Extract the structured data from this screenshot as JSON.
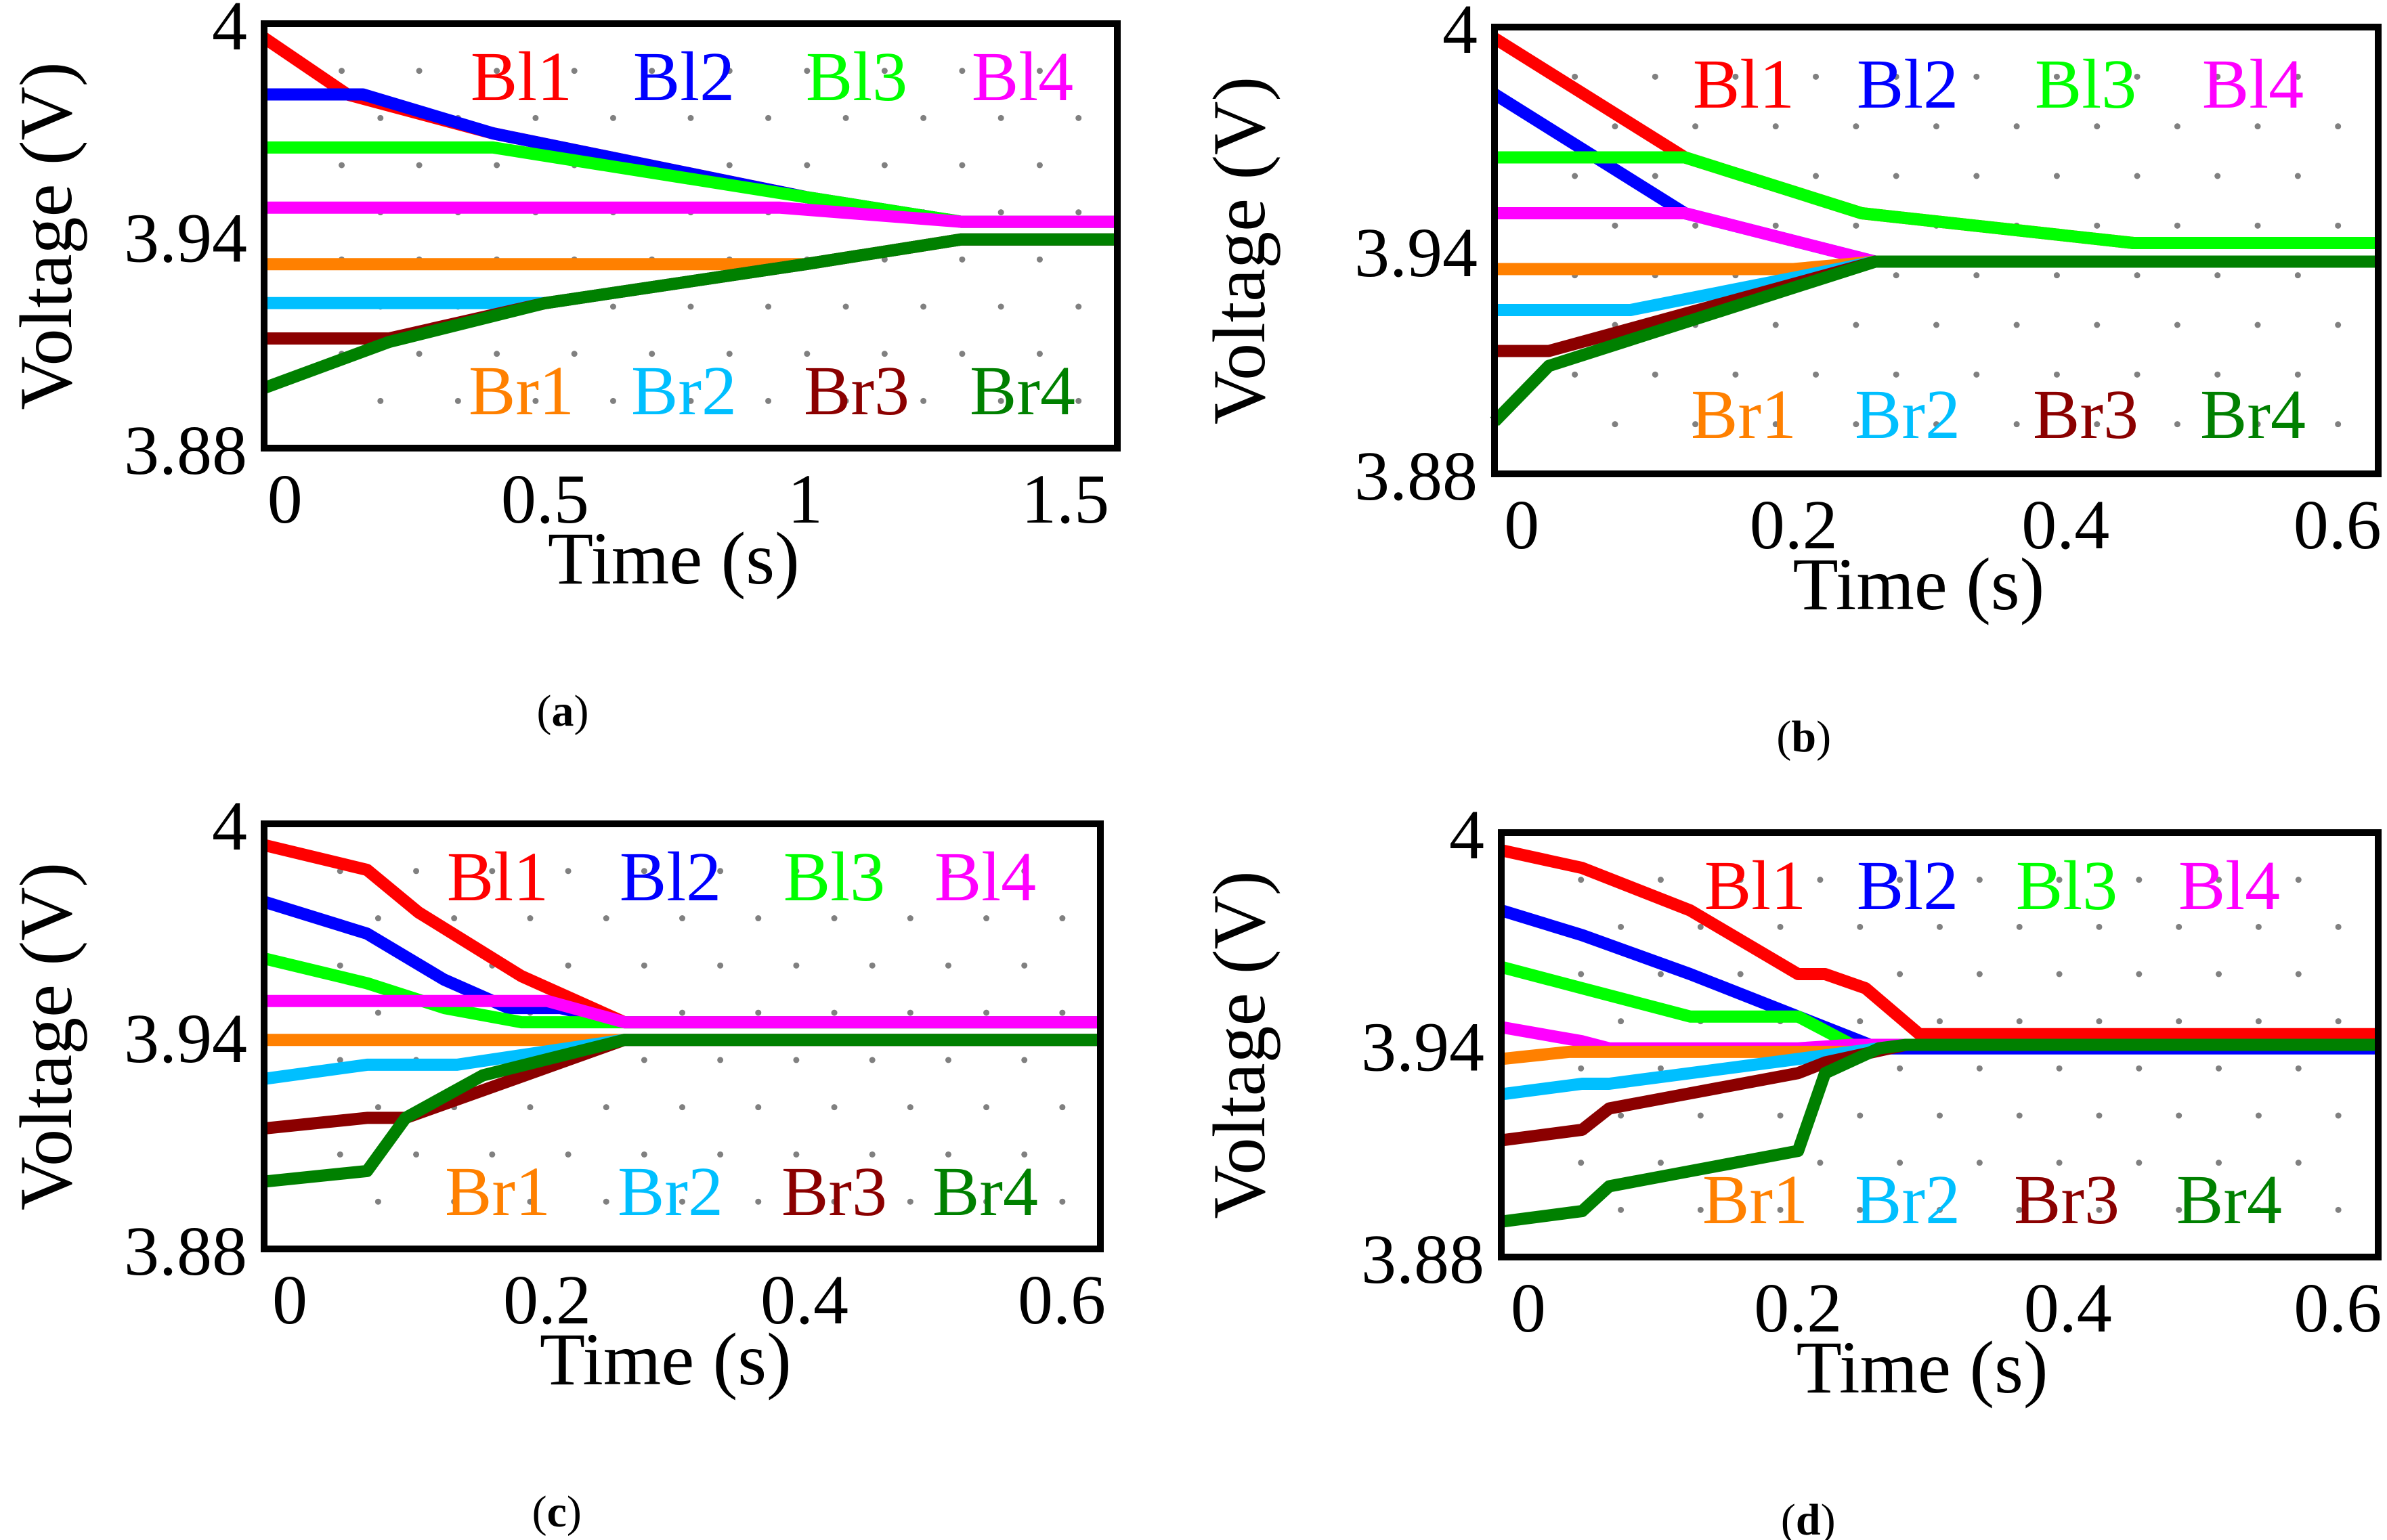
{
  "colors": {
    "Bl1": "#ff0000",
    "Bl2": "#0000ff",
    "Bl3": "#00ff00",
    "Bl4": "#ff00ff",
    "Br1": "#ff8000",
    "Br2": "#00bfff",
    "Br3": "#8b0000",
    "Br4": "#008000",
    "grid_dot": "#808080"
  },
  "chart_data": [
    {
      "panel_label": "(a)",
      "label_letter": "a",
      "type": "line",
      "xlabel": "Time (s)",
      "ylabel": "Voltage (V)",
      "xlim": [
        -0.04,
        1.6
      ],
      "ylim": [
        3.88,
        4.0
      ],
      "xticks": [
        0,
        0.5,
        1,
        1.5
      ],
      "xtick_labels": [
        "0",
        "0.5",
        "1",
        "1.5"
      ],
      "yticks": [
        3.88,
        3.94,
        4.0
      ],
      "ytick_labels": [
        "3.88",
        "3.94",
        "4"
      ],
      "legend_top": [
        "Bl1",
        "Bl2",
        "Bl3",
        "Bl4"
      ],
      "legend_bottom": [
        "Br1",
        "Br2",
        "Br3",
        "Br4"
      ],
      "series": [
        {
          "name": "Bl1",
          "x": [
            -0.04,
            0.12,
            0.4,
            1.0,
            1.3,
            1.6
          ],
          "y": [
            3.996,
            3.98,
            3.969,
            3.951,
            3.944,
            3.944
          ]
        },
        {
          "name": "Bl2",
          "x": [
            -0.04,
            0.15,
            0.4,
            1.0,
            1.3,
            1.6
          ],
          "y": [
            3.98,
            3.98,
            3.969,
            3.951,
            3.944,
            3.944
          ]
        },
        {
          "name": "Bl3",
          "x": [
            -0.04,
            0.4,
            1.0,
            1.3,
            1.6
          ],
          "y": [
            3.965,
            3.965,
            3.951,
            3.944,
            3.944
          ]
        },
        {
          "name": "Bl4",
          "x": [
            -0.04,
            0.95,
            1.3,
            1.6
          ],
          "y": [
            3.948,
            3.948,
            3.944,
            3.944
          ]
        },
        {
          "name": "Br1",
          "x": [
            -0.04,
            1.0,
            1.3,
            1.6
          ],
          "y": [
            3.932,
            3.932,
            3.939,
            3.939
          ]
        },
        {
          "name": "Br2",
          "x": [
            -0.04,
            0.5,
            1.0,
            1.3,
            1.6
          ],
          "y": [
            3.921,
            3.921,
            3.932,
            3.939,
            3.939
          ]
        },
        {
          "name": "Br3",
          "x": [
            -0.04,
            0.2,
            0.5,
            1.0,
            1.3,
            1.6
          ],
          "y": [
            3.911,
            3.911,
            3.921,
            3.932,
            3.939,
            3.939
          ]
        },
        {
          "name": "Br4",
          "x": [
            -0.04,
            0.2,
            0.5,
            1.0,
            1.3,
            1.6
          ],
          "y": [
            3.897,
            3.91,
            3.921,
            3.932,
            3.939,
            3.939
          ]
        }
      ]
    },
    {
      "panel_label": "(b)",
      "label_letter": "b",
      "type": "line",
      "xlabel": "Time (s)",
      "ylabel": "Voltage (V)",
      "xlim": [
        -0.02,
        0.63
      ],
      "ylim": [
        3.88,
        4.0
      ],
      "xticks": [
        0,
        0.2,
        0.4,
        0.6
      ],
      "xtick_labels": [
        "0",
        "0.2",
        "0.4",
        "0.6"
      ],
      "yticks": [
        3.88,
        3.94,
        4.0
      ],
      "ytick_labels": [
        "3.88",
        "3.94",
        "4"
      ],
      "legend_top": [
        "Bl1",
        "Bl2",
        "Bl3",
        "Bl4"
      ],
      "legend_bottom": [
        "Br1",
        "Br2",
        "Br3",
        "Br4"
      ],
      "series": [
        {
          "name": "Bl1",
          "x": [
            -0.02,
            0.12,
            0.25,
            0.45,
            0.63
          ],
          "y": [
            3.997,
            3.965,
            3.95,
            3.942,
            3.942
          ]
        },
        {
          "name": "Bl2",
          "x": [
            -0.02,
            0.12,
            0.26,
            0.63
          ],
          "y": [
            3.982,
            3.95,
            3.937,
            3.937
          ]
        },
        {
          "name": "Bl3",
          "x": [
            -0.02,
            0.12,
            0.25,
            0.45,
            0.63
          ],
          "y": [
            3.965,
            3.965,
            3.95,
            3.942,
            3.942
          ]
        },
        {
          "name": "Bl4",
          "x": [
            -0.02,
            0.12,
            0.26,
            0.63
          ],
          "y": [
            3.95,
            3.95,
            3.937,
            3.937
          ]
        },
        {
          "name": "Br1",
          "x": [
            -0.02,
            0.2,
            0.26,
            0.63
          ],
          "y": [
            3.935,
            3.935,
            3.937,
            3.937
          ]
        },
        {
          "name": "Br2",
          "x": [
            -0.02,
            0.08,
            0.26,
            0.63
          ],
          "y": [
            3.924,
            3.924,
            3.937,
            3.937
          ]
        },
        {
          "name": "Br3",
          "x": [
            -0.02,
            0.02,
            0.26,
            0.63
          ],
          "y": [
            3.913,
            3.913,
            3.937,
            3.937
          ]
        },
        {
          "name": "Br4",
          "x": [
            -0.02,
            0.02,
            0.26,
            0.63
          ],
          "y": [
            3.894,
            3.909,
            3.937,
            3.937
          ]
        }
      ]
    },
    {
      "panel_label": "(c)",
      "label_letter": "c",
      "type": "line",
      "xlabel": "Time (s)",
      "ylabel": "Voltage (V)",
      "xlim": [
        -0.02,
        0.63
      ],
      "ylim": [
        3.88,
        4.0
      ],
      "xticks": [
        0,
        0.2,
        0.4,
        0.6
      ],
      "xtick_labels": [
        "0",
        "0.2",
        "0.4",
        "0.6"
      ],
      "yticks": [
        3.88,
        3.94,
        4.0
      ],
      "ytick_labels": [
        "3.88",
        "3.94",
        "4"
      ],
      "legend_top": [
        "Bl1",
        "Bl2",
        "Bl3",
        "Bl4"
      ],
      "legend_bottom": [
        "Br1",
        "Br2",
        "Br3",
        "Br4"
      ],
      "series": [
        {
          "name": "Bl1",
          "x": [
            -0.02,
            0.06,
            0.1,
            0.18,
            0.26,
            0.63
          ],
          "y": [
            3.994,
            3.987,
            3.975,
            3.957,
            3.944,
            3.944
          ]
        },
        {
          "name": "Bl2",
          "x": [
            -0.02,
            0.06,
            0.12,
            0.17,
            0.21,
            0.26,
            0.63
          ],
          "y": [
            3.978,
            3.969,
            3.956,
            3.948,
            3.948,
            3.944,
            3.944
          ]
        },
        {
          "name": "Bl3",
          "x": [
            -0.02,
            0.06,
            0.12,
            0.18,
            0.22,
            0.26,
            0.63
          ],
          "y": [
            3.962,
            3.955,
            3.948,
            3.944,
            3.944,
            3.944,
            3.944
          ]
        },
        {
          "name": "Bl4",
          "x": [
            -0.02,
            0.2,
            0.26,
            0.63
          ],
          "y": [
            3.95,
            3.95,
            3.944,
            3.944
          ]
        },
        {
          "name": "Br1",
          "x": [
            -0.02,
            0.26,
            0.63
          ],
          "y": [
            3.939,
            3.939,
            3.939
          ]
        },
        {
          "name": "Br2",
          "x": [
            -0.02,
            0.06,
            0.13,
            0.26,
            0.63
          ],
          "y": [
            3.928,
            3.932,
            3.932,
            3.939,
            3.939
          ]
        },
        {
          "name": "Br3",
          "x": [
            -0.02,
            0.06,
            0.09,
            0.26,
            0.63
          ],
          "y": [
            3.914,
            3.917,
            3.917,
            3.939,
            3.939
          ]
        },
        {
          "name": "Br4",
          "x": [
            -0.02,
            0.06,
            0.09,
            0.15,
            0.26,
            0.63
          ],
          "y": [
            3.899,
            3.902,
            3.917,
            3.929,
            3.939,
            3.939
          ]
        }
      ]
    },
    {
      "panel_label": "(d)",
      "label_letter": "d",
      "type": "line",
      "xlabel": "Time (s)",
      "ylabel": "Voltage (V)",
      "xlim": [
        -0.02,
        0.63
      ],
      "ylim": [
        3.88,
        4.0
      ],
      "xticks": [
        0,
        0.2,
        0.4,
        0.6
      ],
      "xtick_labels": [
        "0",
        "0.2",
        "0.4",
        "0.6"
      ],
      "yticks": [
        3.88,
        3.94,
        4.0
      ],
      "ytick_labels": [
        "3.88",
        "3.94",
        "4"
      ],
      "legend_top": [
        "Bl1",
        "Bl2",
        "Bl3",
        "Bl4"
      ],
      "legend_bottom": [
        "Br1",
        "Br2",
        "Br3",
        "Br4"
      ],
      "series": [
        {
          "name": "Bl1",
          "x": [
            -0.02,
            0.04,
            0.12,
            0.2,
            0.22,
            0.25,
            0.29,
            0.63
          ],
          "y": [
            3.995,
            3.99,
            3.978,
            3.96,
            3.96,
            3.956,
            3.943,
            3.943
          ]
        },
        {
          "name": "Bl2",
          "x": [
            -0.02,
            0.04,
            0.12,
            0.2,
            0.26,
            0.63
          ],
          "y": [
            3.978,
            3.971,
            3.96,
            3.948,
            3.939,
            3.939
          ]
        },
        {
          "name": "Bl3",
          "x": [
            -0.02,
            0.04,
            0.08,
            0.12,
            0.2,
            0.24,
            0.28,
            0.63
          ],
          "y": [
            3.962,
            3.956,
            3.952,
            3.948,
            3.948,
            3.94,
            3.94,
            3.94
          ]
        },
        {
          "name": "Bl4",
          "x": [
            -0.02,
            0.04,
            0.06,
            0.2,
            0.24,
            0.28,
            0.63
          ],
          "y": [
            3.945,
            3.941,
            3.939,
            3.939,
            3.94,
            3.94,
            3.94
          ]
        },
        {
          "name": "Br1",
          "x": [
            -0.02,
            0.03,
            0.24,
            0.28,
            0.63
          ],
          "y": [
            3.936,
            3.938,
            3.938,
            3.94,
            3.94
          ]
        },
        {
          "name": "Br2",
          "x": [
            -0.02,
            0.04,
            0.06,
            0.2,
            0.24,
            0.28,
            0.63
          ],
          "y": [
            3.926,
            3.929,
            3.929,
            3.936,
            3.938,
            3.94,
            3.94
          ]
        },
        {
          "name": "Br3",
          "x": [
            -0.02,
            0.04,
            0.06,
            0.2,
            0.22,
            0.28,
            0.63
          ],
          "y": [
            3.913,
            3.916,
            3.922,
            3.932,
            3.935,
            3.94,
            3.94
          ]
        },
        {
          "name": "Br4",
          "x": [
            -0.02,
            0.04,
            0.06,
            0.2,
            0.22,
            0.26,
            0.28,
            0.63
          ],
          "y": [
            3.89,
            3.893,
            3.9,
            3.91,
            3.932,
            3.939,
            3.94,
            3.94
          ]
        }
      ]
    }
  ]
}
